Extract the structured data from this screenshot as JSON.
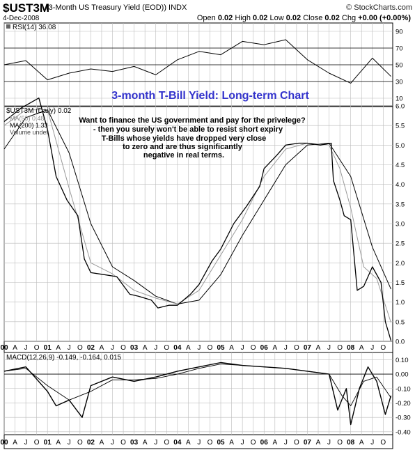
{
  "header": {
    "symbol": "$UST3M",
    "description": "(3-Month US Treasury Yield (EOD)) INDX",
    "brand": "© StockCharts.com",
    "date": "4-Dec-2008",
    "ohlc": {
      "open_label": "Open",
      "open": "0.02",
      "high_label": "High",
      "high": "0.02",
      "low_label": "Low",
      "low": "0.02",
      "close_label": "Close",
      "close": "0.02",
      "chg_label": "Chg",
      "chg": "+0.00 (+0.00%)"
    }
  },
  "annotation": {
    "title": "3-month T-Bill Yield: Long-term Chart",
    "text_lines": [
      "Want to finance the US government and pay for the privelege?",
      "- then you surely won't be able to resist short expiry",
      "T-Bills whose yields have dropped very close",
      "to zero and are thus significantly",
      "negative in real terms."
    ]
  },
  "legend": {
    "price": "$UST3M (Daily) 0.02",
    "ma50": "MA(50) 0.48",
    "ma200": "MA(200) 1.33",
    "volume": "Volume undef"
  },
  "colors": {
    "ma50": "#999999",
    "rsi_fill": "#888888",
    "grid": "#bbbbbb",
    "title": "#3333cc"
  },
  "chart_data": [
    {
      "type": "line",
      "panel": "rsi",
      "label": "RSI(14) 36.08",
      "ylim": [
        0,
        100
      ],
      "yticks": [
        10,
        30,
        50,
        70,
        90
      ],
      "reference_lines": [
        30,
        50,
        70
      ],
      "grid": true,
      "series": [
        {
          "name": "RSI(14)",
          "x": [
            2000.0,
            2000.5,
            2001.0,
            2001.5,
            2002.0,
            2002.5,
            2003.0,
            2003.5,
            2004.0,
            2004.5,
            2005.0,
            2005.5,
            2006.0,
            2006.5,
            2007.0,
            2007.5,
            2008.0,
            2008.5,
            2008.93
          ],
          "values": [
            50,
            55,
            32,
            40,
            45,
            42,
            48,
            38,
            56,
            66,
            62,
            78,
            74,
            80,
            56,
            40,
            28,
            58,
            36.08
          ]
        }
      ]
    },
    {
      "type": "line",
      "panel": "price",
      "ylim": [
        0,
        6.0
      ],
      "yticks": [
        "0.0",
        "0.5",
        "1.0",
        "1.5",
        "2.0",
        "2.5",
        "3.0",
        "3.5",
        "4.0",
        "4.5",
        "5.0",
        "5.5",
        "6.0"
      ],
      "grid": true,
      "series": [
        {
          "name": "$UST3M (Daily)",
          "x": [
            2000.0,
            2000.4,
            2000.8,
            2001.0,
            2001.2,
            2001.45,
            2001.7,
            2001.85,
            2002.0,
            2002.3,
            2002.6,
            2002.9,
            2003.1,
            2003.4,
            2003.55,
            2003.8,
            2004.0,
            2004.3,
            2004.5,
            2004.8,
            2005.0,
            2005.3,
            2005.6,
            2005.9,
            2006.0,
            2006.3,
            2006.5,
            2006.8,
            2007.0,
            2007.3,
            2007.55,
            2007.6,
            2007.75,
            2007.85,
            2008.0,
            2008.15,
            2008.3,
            2008.5,
            2008.7,
            2008.8,
            2008.93
          ],
          "values": [
            5.6,
            5.95,
            6.2,
            5.4,
            4.2,
            3.6,
            3.2,
            2.1,
            1.75,
            1.7,
            1.65,
            1.2,
            1.15,
            1.05,
            0.85,
            0.92,
            0.92,
            1.2,
            1.45,
            2.05,
            2.35,
            3.0,
            3.45,
            3.95,
            4.4,
            4.75,
            5.0,
            5.05,
            5.05,
            5.0,
            5.05,
            4.1,
            3.6,
            3.2,
            3.1,
            1.3,
            1.4,
            1.9,
            1.5,
            0.5,
            0.02
          ]
        },
        {
          "name": "MA(50)",
          "x": [
            2000.0,
            2000.5,
            2001.0,
            2001.5,
            2002.0,
            2002.5,
            2003.0,
            2003.5,
            2004.0,
            2004.5,
            2005.0,
            2005.5,
            2006.0,
            2006.5,
            2007.0,
            2007.5,
            2007.75,
            2008.0,
            2008.3,
            2008.6,
            2008.93
          ],
          "values": [
            5.5,
            5.9,
            5.9,
            3.9,
            2.0,
            1.72,
            1.3,
            1.1,
            0.95,
            1.3,
            2.2,
            3.1,
            4.2,
            4.9,
            5.05,
            5.0,
            4.4,
            3.4,
            1.9,
            1.6,
            0.48
          ]
        },
        {
          "name": "MA(200)",
          "x": [
            2000.0,
            2000.5,
            2001.0,
            2001.5,
            2002.0,
            2002.5,
            2003.0,
            2003.5,
            2004.0,
            2004.5,
            2005.0,
            2005.5,
            2006.0,
            2006.5,
            2007.0,
            2007.5,
            2008.0,
            2008.5,
            2008.93
          ],
          "values": [
            4.9,
            5.7,
            5.9,
            4.8,
            3.0,
            1.9,
            1.55,
            1.15,
            0.95,
            1.05,
            1.7,
            2.7,
            3.6,
            4.5,
            5.0,
            5.05,
            4.2,
            2.4,
            1.33
          ]
        }
      ]
    },
    {
      "type": "line",
      "panel": "macd",
      "label": "MACD(12,26,9) -0.149, -0.164, 0.015",
      "ylim": [
        -0.42,
        0.15
      ],
      "yticks": [
        "0.10",
        "0.00",
        "-0.10",
        "-0.20",
        "-0.30",
        "-0.40"
      ],
      "grid": true,
      "series": [
        {
          "name": "MACD",
          "x": [
            2000.0,
            2000.5,
            2001.0,
            2001.2,
            2001.5,
            2001.8,
            2002.0,
            2002.5,
            2003.0,
            2003.5,
            2004.0,
            2004.5,
            2005.0,
            2005.5,
            2006.0,
            2006.5,
            2007.0,
            2007.5,
            2007.7,
            2007.9,
            2008.0,
            2008.2,
            2008.4,
            2008.6,
            2008.8,
            2008.93
          ],
          "values": [
            0.02,
            0.05,
            -0.12,
            -0.22,
            -0.18,
            -0.3,
            -0.08,
            -0.02,
            -0.05,
            -0.02,
            0.02,
            0.05,
            0.08,
            0.06,
            0.05,
            0.04,
            0.02,
            0.0,
            -0.25,
            -0.1,
            -0.35,
            -0.1,
            0.05,
            -0.05,
            -0.28,
            -0.149
          ]
        },
        {
          "name": "Signal",
          "x": [
            2000.0,
            2000.5,
            2001.0,
            2001.5,
            2002.0,
            2002.5,
            2003.0,
            2003.5,
            2004.0,
            2004.5,
            2005.0,
            2005.5,
            2006.0,
            2006.5,
            2007.0,
            2007.5,
            2007.8,
            2008.0,
            2008.3,
            2008.6,
            2008.93
          ],
          "values": [
            0.02,
            0.04,
            -0.08,
            -0.18,
            -0.12,
            -0.04,
            -0.04,
            -0.03,
            0.0,
            0.04,
            0.07,
            0.06,
            0.05,
            0.04,
            0.02,
            0.0,
            -0.15,
            -0.22,
            -0.05,
            -0.02,
            -0.164
          ]
        }
      ]
    },
    {
      "type": "axis",
      "panel": "time",
      "x_ticks": [
        {
          "x": 2000.0,
          "label": "00",
          "bold": true
        },
        {
          "x": 2000.25,
          "label": "A"
        },
        {
          "x": 2000.5,
          "label": "J"
        },
        {
          "x": 2000.75,
          "label": "O"
        },
        {
          "x": 2001.0,
          "label": "01",
          "bold": true
        },
        {
          "x": 2001.25,
          "label": "A"
        },
        {
          "x": 2001.5,
          "label": "J"
        },
        {
          "x": 2001.75,
          "label": "O"
        },
        {
          "x": 2002.0,
          "label": "02",
          "bold": true
        },
        {
          "x": 2002.25,
          "label": "A"
        },
        {
          "x": 2002.5,
          "label": "J"
        },
        {
          "x": 2002.75,
          "label": "O"
        },
        {
          "x": 2003.0,
          "label": "03",
          "bold": true
        },
        {
          "x": 2003.25,
          "label": "A"
        },
        {
          "x": 2003.5,
          "label": "J"
        },
        {
          "x": 2003.75,
          "label": "O"
        },
        {
          "x": 2004.0,
          "label": "04",
          "bold": true
        },
        {
          "x": 2004.25,
          "label": "A"
        },
        {
          "x": 2004.5,
          "label": "J"
        },
        {
          "x": 2004.75,
          "label": "O"
        },
        {
          "x": 2005.0,
          "label": "05",
          "bold": true
        },
        {
          "x": 2005.25,
          "label": "A"
        },
        {
          "x": 2005.5,
          "label": "J"
        },
        {
          "x": 2005.75,
          "label": "O"
        },
        {
          "x": 2006.0,
          "label": "06",
          "bold": true
        },
        {
          "x": 2006.25,
          "label": "A"
        },
        {
          "x": 2006.5,
          "label": "J"
        },
        {
          "x": 2006.75,
          "label": "O"
        },
        {
          "x": 2007.0,
          "label": "07",
          "bold": true
        },
        {
          "x": 2007.25,
          "label": "A"
        },
        {
          "x": 2007.5,
          "label": "J"
        },
        {
          "x": 2007.75,
          "label": "O"
        },
        {
          "x": 2008.0,
          "label": "08",
          "bold": true
        },
        {
          "x": 2008.25,
          "label": "A"
        },
        {
          "x": 2008.5,
          "label": "J"
        },
        {
          "x": 2008.75,
          "label": "O"
        }
      ]
    }
  ]
}
